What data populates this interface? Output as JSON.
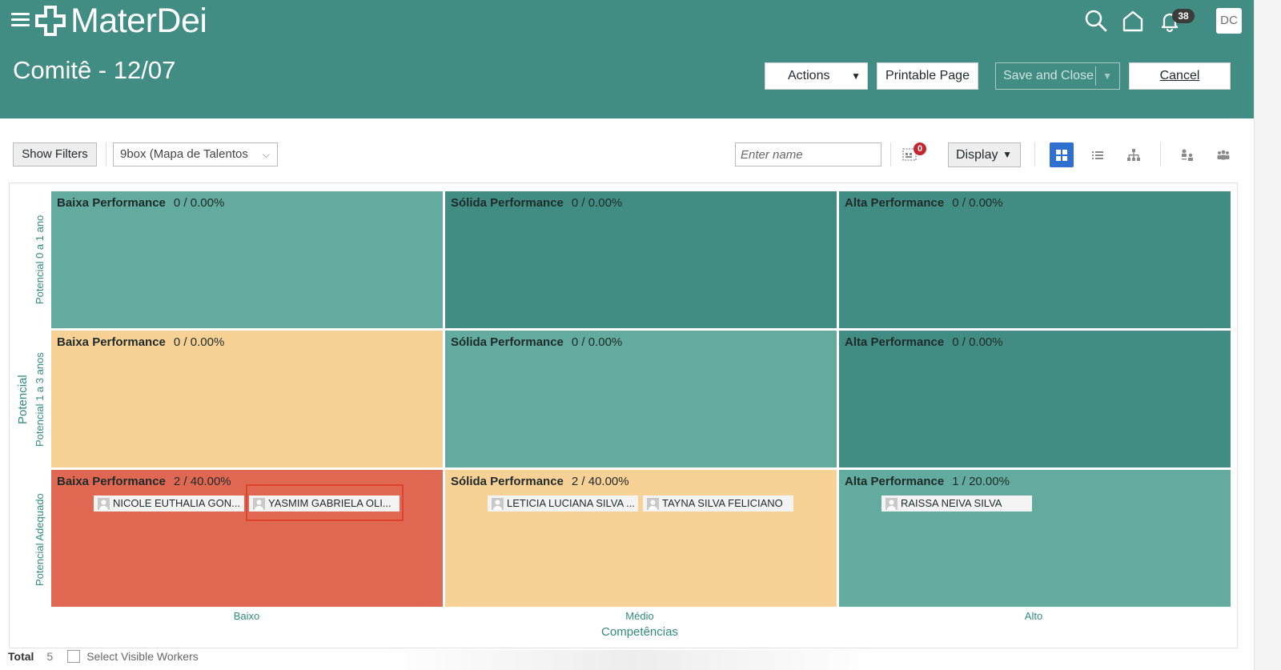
{
  "header": {
    "logo_text": "MaterDei",
    "page_title": "Comitê - 12/07",
    "notification_count": "38",
    "avatar_initials": "DC",
    "icons": [
      "menu-icon",
      "search-icon",
      "home-icon",
      "bell-icon"
    ]
  },
  "actions": {
    "actions_label": "Actions",
    "printable_label": "Printable Page",
    "save_close_label": "Save and Close",
    "cancel_label": "Cancel"
  },
  "toolbar": {
    "show_filters_label": "Show Filters",
    "view_select_value": "9box (Mapa de Talentos",
    "name_placeholder": "Enter name",
    "filter_badge_count": "0",
    "display_label": "Display",
    "active_view": "grid",
    "view_icons": [
      "grid-view-icon",
      "list-view-icon",
      "hierarchy-view-icon",
      "org-chart-icon",
      "team-icon"
    ]
  },
  "grid": {
    "y_axis_title": "Potencial",
    "x_axis_title": "Competências",
    "rows": [
      "Potencial 0 a 1 ano",
      "Potencial 1 a 3 anos",
      "Potencial Adequado"
    ],
    "columns": [
      "Baixo",
      "Médio",
      "Alto"
    ],
    "colors": {
      "teal_light": "#62ab9e",
      "teal_dark": "#418d84",
      "peach": "#f7d196",
      "red": "#e06853"
    },
    "cells": [
      [
        {
          "title": "Baixa Performance",
          "count": "0 / 0.00%",
          "color": "#62ab9e",
          "people": []
        },
        {
          "title": "Sólida Performance",
          "count": "0 / 0.00%",
          "color": "#418d84",
          "people": []
        },
        {
          "title": "Alta Performance",
          "count": "0 / 0.00%",
          "color": "#418d84",
          "people": []
        }
      ],
      [
        {
          "title": "Baixa Performance",
          "count": "0 / 0.00%",
          "color": "#f7d196",
          "people": []
        },
        {
          "title": "Sólida Performance",
          "count": "0 / 0.00%",
          "color": "#62ab9e",
          "people": []
        },
        {
          "title": "Alta Performance",
          "count": "0 / 0.00%",
          "color": "#418d84",
          "people": []
        }
      ],
      [
        {
          "title": "Baixa Performance",
          "count": "2 / 40.00%",
          "color": "#e06853",
          "people": [
            "NICOLE EUTHALIA GON...",
            "YASMIM GABRIELA OLI..."
          ]
        },
        {
          "title": "Sólida Performance",
          "count": "2 / 40.00%",
          "color": "#f7d196",
          "people": [
            "LETICIA LUCIANA SILVA ...",
            "TAYNA SILVA FELICIANO"
          ]
        },
        {
          "title": "Alta Performance",
          "count": "1 / 20.00%",
          "color": "#62ab9e",
          "people": [
            "RAISSA NEIVA SILVA"
          ]
        }
      ]
    ]
  },
  "footer": {
    "total_label": "Total",
    "total_value": "5",
    "select_label": "Select Visible Workers"
  }
}
